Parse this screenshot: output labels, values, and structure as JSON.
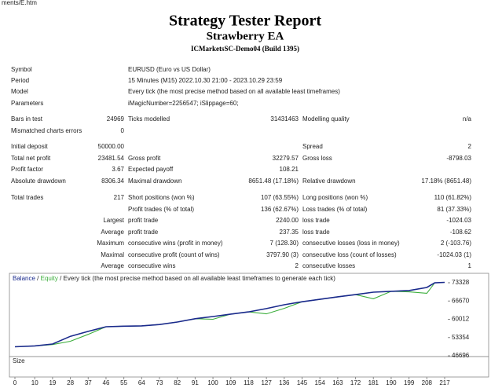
{
  "browser": {
    "address": "ments/E.htm"
  },
  "header": {
    "title": "Strategy Tester Report",
    "subtitle": "Strawberry EA",
    "server": "ICMarketsSC-Demo04 (Build 1395)"
  },
  "info": [
    [
      "Symbol",
      "EURUSD (Euro vs US Dollar)"
    ],
    [
      "Period",
      "15 Minutes (M15) 2022.10.30 21:00 - 2023.10.29 23:59"
    ],
    [
      "Model",
      "Every tick (the most precise method based on all available least timeframes)"
    ],
    [
      "Parameters",
      "iMagicNumber=2256547; iSlippage=60;"
    ]
  ],
  "stats": [
    [
      "Bars in test",
      "24969",
      "Ticks modelled",
      "31431463",
      "Modelling quality",
      "n/a"
    ],
    [
      "Mismatched charts errors",
      "0",
      null,
      null,
      null,
      null
    ],
    [
      "Initial deposit",
      "50000.00",
      null,
      null,
      "Spread",
      "2"
    ],
    [
      "Total net profit",
      "23481.54",
      "Gross profit",
      "32279.57",
      "Gross loss",
      "-8798.03"
    ],
    [
      "Profit factor",
      "3.67",
      "Expected payoff",
      "108.21",
      null,
      null
    ],
    [
      "Absolute drawdown",
      "8306.34",
      "Maximal drawdown",
      "8651.48 (17.18%)",
      "Relative drawdown",
      "17.18% (8651.48)"
    ],
    [
      "Total trades",
      "217",
      "Short positions (won %)",
      "107 (63.55%)",
      "Long positions (won %)",
      "110 (61.82%)"
    ],
    [
      null,
      null,
      "Profit trades (% of total)",
      "136 (62.67%)",
      "Loss trades (% of total)",
      "81 (37.33%)"
    ],
    [
      null,
      "Largest",
      "profit trade",
      "2240.00",
      "loss trade",
      "-1024.03"
    ],
    [
      null,
      "Average",
      "profit trade",
      "237.35",
      "loss trade",
      "-108.62"
    ],
    [
      null,
      "Maximum",
      "consecutive wins (profit in money)",
      "7 (128.30)",
      "consecutive losses (loss in money)",
      "2 (-103.76)"
    ],
    [
      null,
      "Maximal",
      "consecutive profit (count of wins)",
      "3797.90 (3)",
      "consecutive loss (count of losses)",
      "-1024.03 (1)"
    ],
    [
      null,
      "Average",
      "consecutive wins",
      "2",
      "consecutive losses",
      "1"
    ]
  ],
  "chart_data": {
    "type": "line",
    "legend_separator": "/",
    "legend_note": "/ Every tick (the most precise method based on all available least timeframes to generate each tick)",
    "size_label": "Size",
    "x": [
      0,
      10,
      19,
      28,
      37,
      46,
      55,
      64,
      73,
      82,
      91,
      100,
      109,
      118,
      127,
      136,
      145,
      154,
      163,
      172,
      181,
      190,
      199,
      208,
      212,
      217
    ],
    "series": [
      {
        "name": "Balance",
        "color": "#1a2a8c",
        "values": [
          50000,
          50300,
          51000,
          53800,
          55600,
          57300,
          57500,
          57600,
          58100,
          59000,
          60200,
          61000,
          61900,
          62700,
          63900,
          65300,
          66400,
          67300,
          68200,
          69000,
          69900,
          70200,
          70500,
          71600,
          73300,
          73481.54
        ]
      },
      {
        "name": "Equity",
        "color": "#3cae3c",
        "values": [
          50000,
          50300,
          50800,
          52000,
          54500,
          57300,
          57500,
          57600,
          58100,
          59000,
          60200,
          60000,
          61900,
          62700,
          62000,
          64000,
          66400,
          67300,
          68200,
          69000,
          67500,
          70200,
          70000,
          69500,
          73300,
          73481.54
        ]
      }
    ],
    "xlim": [
      0,
      217
    ],
    "ylim": [
      46696,
      73328
    ],
    "xticks": [
      0,
      10,
      19,
      28,
      37,
      46,
      55,
      64,
      73,
      82,
      91,
      100,
      109,
      118,
      127,
      136,
      145,
      154,
      163,
      172,
      181,
      190,
      199,
      208,
      217
    ],
    "yticks": [
      46696,
      53354,
      60012,
      66670,
      73328
    ],
    "grid": false
  }
}
